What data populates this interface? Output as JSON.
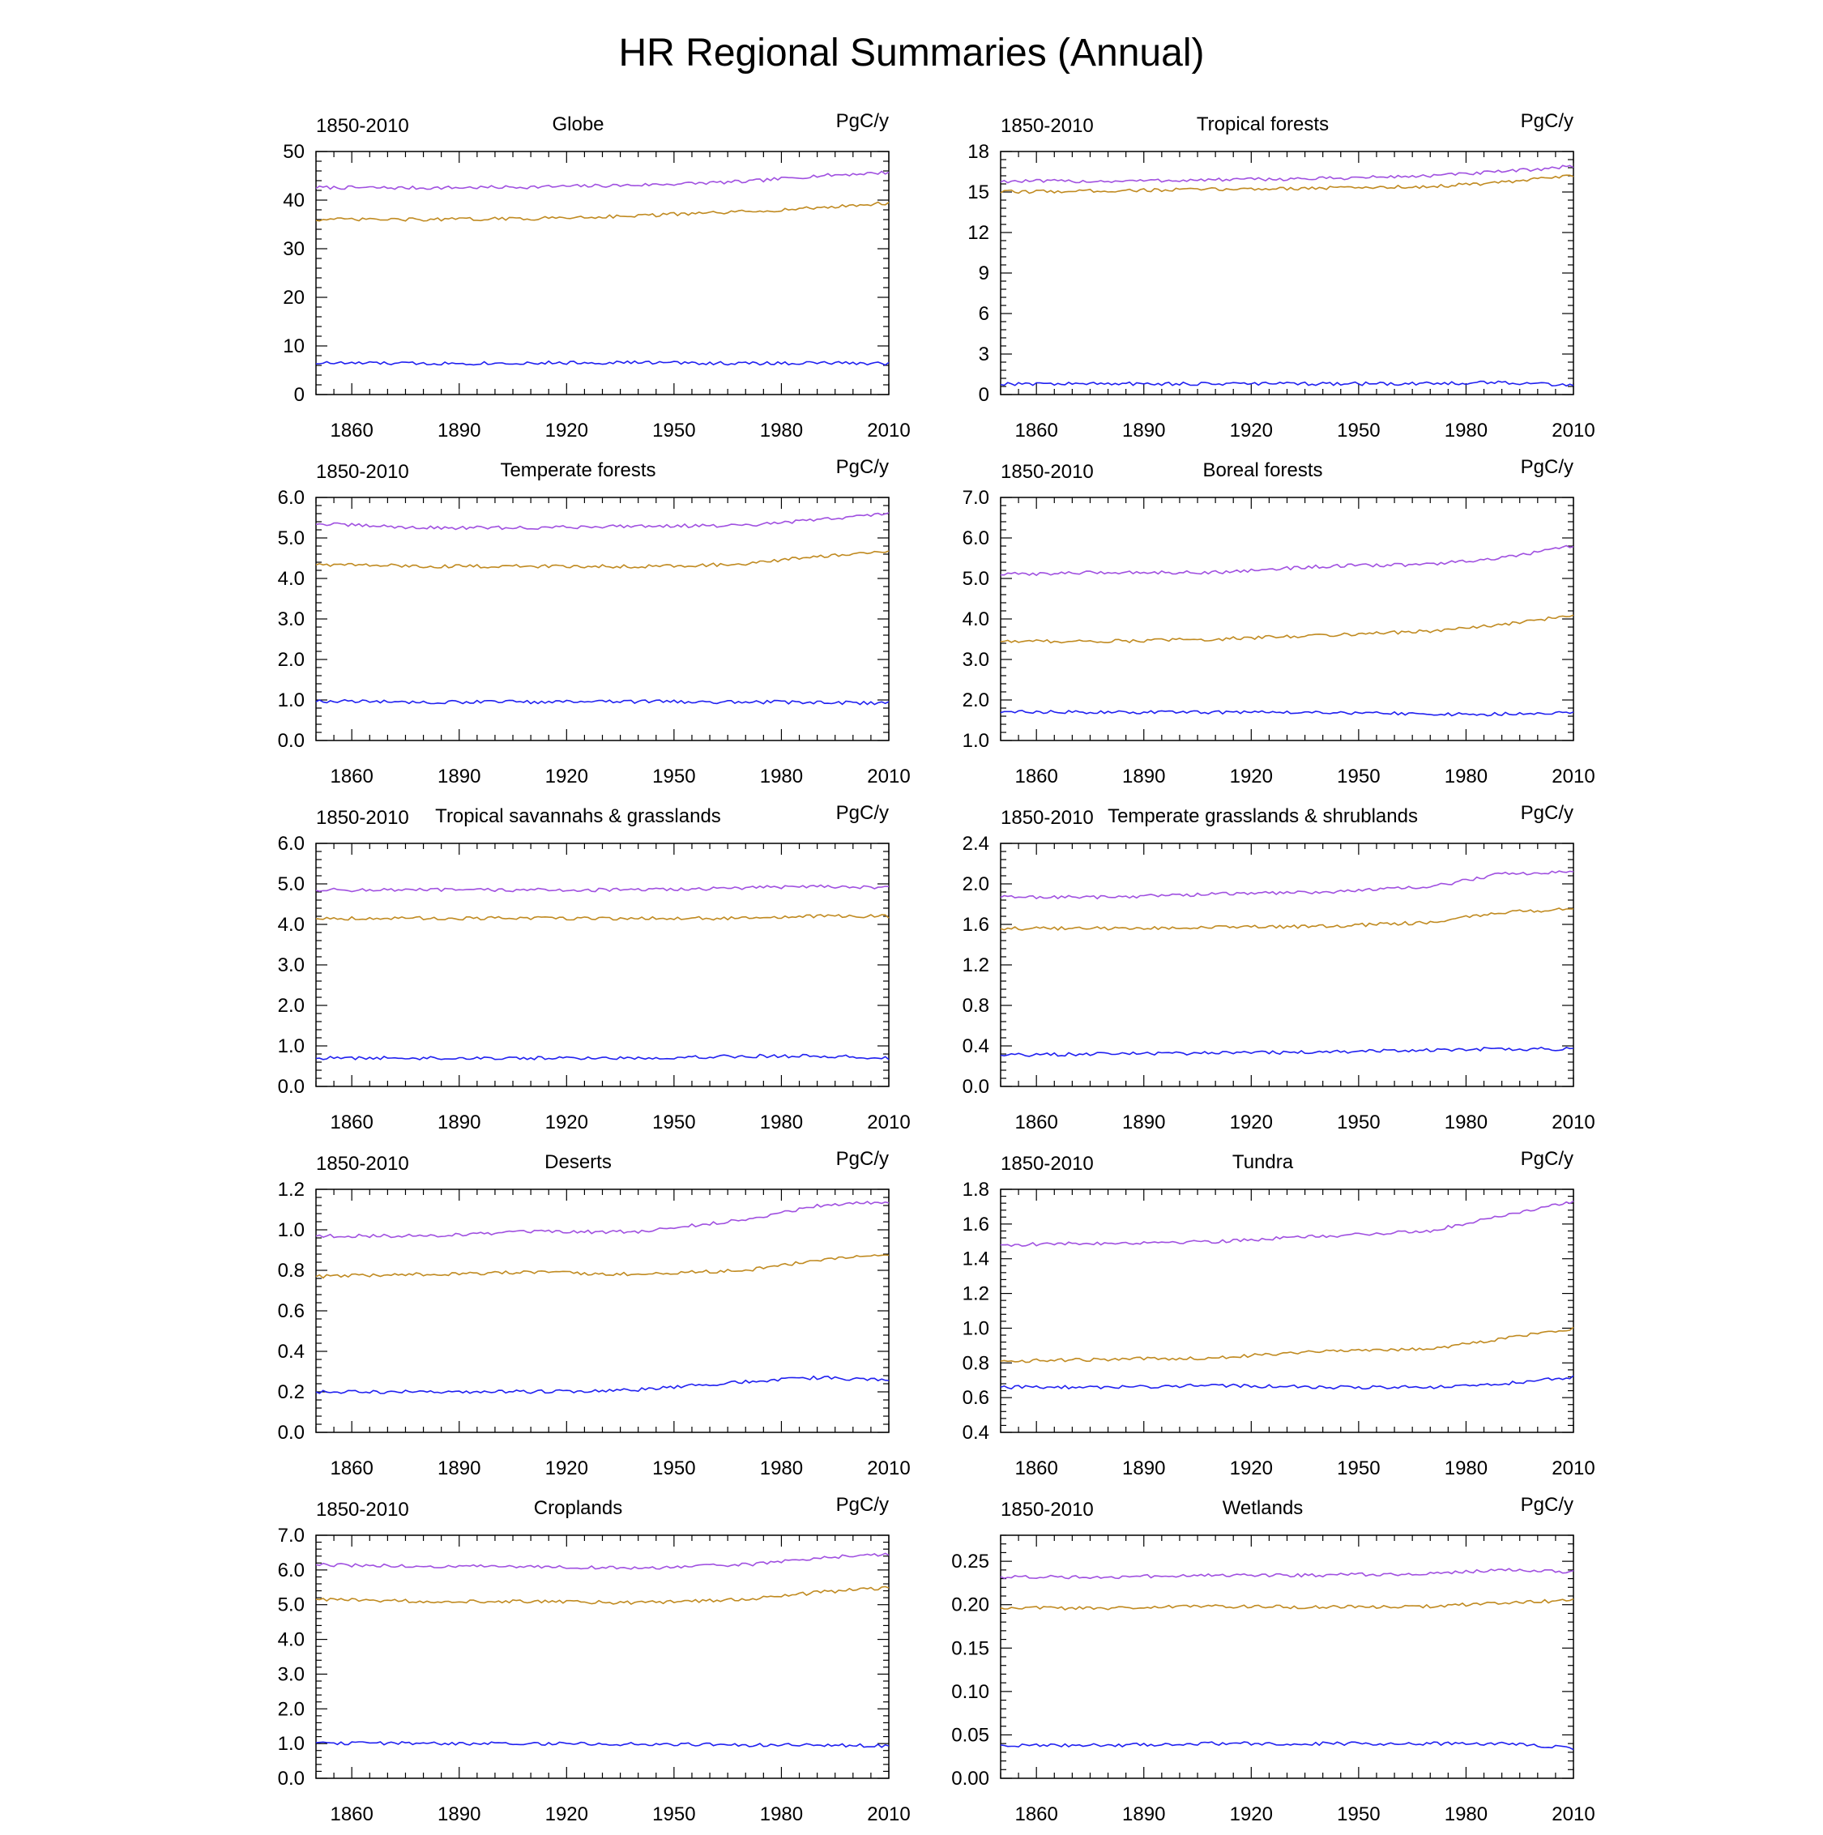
{
  "title": "HR Regional Summaries (Annual)",
  "colors": {
    "upper": "#a050e0",
    "middle": "#c08a20",
    "lower": "#2020f0"
  },
  "chart_data": [
    {
      "type": "line",
      "title": "Globe",
      "period": "1850-2010",
      "units": "PgC/y",
      "xlim": [
        1850,
        2010
      ],
      "xticks": [
        1860,
        1890,
        1920,
        1950,
        1980,
        2010
      ],
      "ylim": [
        0,
        50
      ],
      "yticks": [
        "0",
        "10",
        "20",
        "30",
        "40",
        "50"
      ],
      "series": [
        {
          "x": [
            1850,
            1880,
            1910,
            1940,
            1970,
            1990,
            2010
          ],
          "values": [
            42.6,
            42.5,
            42.7,
            43.1,
            43.8,
            45.0,
            45.7
          ]
        },
        {
          "x": [
            1850,
            1880,
            1910,
            1940,
            1970,
            1990,
            2010
          ],
          "values": [
            36.0,
            36.0,
            36.2,
            36.8,
            37.6,
            38.4,
            39.4
          ]
        },
        {
          "x": [
            1850,
            1880,
            1910,
            1940,
            1970,
            1990,
            2010
          ],
          "values": [
            6.5,
            6.4,
            6.5,
            6.6,
            6.4,
            6.5,
            6.4
          ]
        }
      ]
    },
    {
      "type": "line",
      "title": "Tropical forests",
      "period": "1850-2010",
      "units": "PgC/y",
      "xlim": [
        1850,
        2010
      ],
      "xticks": [
        1860,
        1890,
        1920,
        1950,
        1980,
        2010
      ],
      "ylim": [
        0,
        18
      ],
      "yticks": [
        "0",
        "3",
        "6",
        "9",
        "12",
        "15",
        "18"
      ],
      "series": [
        {
          "x": [
            1850,
            1880,
            1910,
            1940,
            1970,
            1990,
            2010
          ],
          "values": [
            15.8,
            15.8,
            15.9,
            16.0,
            16.2,
            16.5,
            16.9
          ]
        },
        {
          "x": [
            1850,
            1880,
            1910,
            1940,
            1970,
            1990,
            2010
          ],
          "values": [
            15.0,
            15.1,
            15.2,
            15.3,
            15.4,
            15.7,
            16.2
          ]
        },
        {
          "x": [
            1850,
            1880,
            1910,
            1940,
            1970,
            1990,
            2010
          ],
          "values": [
            0.8,
            0.8,
            0.8,
            0.8,
            0.8,
            0.9,
            0.7
          ]
        }
      ]
    },
    {
      "type": "line",
      "title": "Temperate forests",
      "period": "1850-2010",
      "units": "PgC/y",
      "xlim": [
        1850,
        2010
      ],
      "xticks": [
        1860,
        1890,
        1920,
        1950,
        1980,
        2010
      ],
      "ylim": [
        0,
        6
      ],
      "yticks": [
        "0.0",
        "1.0",
        "2.0",
        "3.0",
        "4.0",
        "5.0",
        "6.0"
      ],
      "series": [
        {
          "x": [
            1850,
            1880,
            1910,
            1940,
            1970,
            1990,
            2010
          ],
          "values": [
            5.35,
            5.25,
            5.25,
            5.3,
            5.3,
            5.45,
            5.6
          ]
        },
        {
          "x": [
            1850,
            1880,
            1910,
            1940,
            1970,
            1990,
            2010
          ],
          "values": [
            4.35,
            4.3,
            4.3,
            4.3,
            4.35,
            4.55,
            4.65
          ]
        },
        {
          "x": [
            1850,
            1880,
            1910,
            1940,
            1970,
            1990,
            2010
          ],
          "values": [
            0.97,
            0.95,
            0.95,
            0.96,
            0.95,
            0.94,
            0.92
          ]
        }
      ]
    },
    {
      "type": "line",
      "title": "Boreal forests",
      "period": "1850-2010",
      "units": "PgC/y",
      "xlim": [
        1850,
        2010
      ],
      "xticks": [
        1860,
        1890,
        1920,
        1950,
        1980,
        2010
      ],
      "ylim": [
        1,
        7
      ],
      "yticks": [
        "1.0",
        "2.0",
        "3.0",
        "4.0",
        "5.0",
        "6.0",
        "7.0"
      ],
      "series": [
        {
          "x": [
            1850,
            1880,
            1910,
            1940,
            1970,
            1990,
            2010
          ],
          "values": [
            5.1,
            5.15,
            5.15,
            5.3,
            5.35,
            5.5,
            5.8
          ]
        },
        {
          "x": [
            1850,
            1880,
            1910,
            1940,
            1970,
            1990,
            2010
          ],
          "values": [
            3.45,
            3.45,
            3.5,
            3.6,
            3.7,
            3.85,
            4.1
          ]
        },
        {
          "x": [
            1850,
            1880,
            1910,
            1940,
            1970,
            1990,
            2010
          ],
          "values": [
            1.7,
            1.7,
            1.7,
            1.7,
            1.65,
            1.65,
            1.7
          ]
        }
      ]
    },
    {
      "type": "line",
      "title": "Tropical savannahs & grasslands",
      "period": "1850-2010",
      "units": "PgC/y",
      "xlim": [
        1850,
        2010
      ],
      "xticks": [
        1860,
        1890,
        1920,
        1950,
        1980,
        2010
      ],
      "ylim": [
        0,
        6
      ],
      "yticks": [
        "0.0",
        "1.0",
        "2.0",
        "3.0",
        "4.0",
        "5.0",
        "6.0"
      ],
      "series": [
        {
          "x": [
            1850,
            1880,
            1910,
            1940,
            1970,
            1990,
            2010
          ],
          "values": [
            4.85,
            4.85,
            4.85,
            4.85,
            4.9,
            4.95,
            4.9
          ]
        },
        {
          "x": [
            1850,
            1880,
            1910,
            1940,
            1970,
            1990,
            2010
          ],
          "values": [
            4.15,
            4.15,
            4.15,
            4.15,
            4.15,
            4.2,
            4.2
          ]
        },
        {
          "x": [
            1850,
            1880,
            1910,
            1940,
            1970,
            1990,
            2010
          ],
          "values": [
            0.7,
            0.7,
            0.7,
            0.7,
            0.75,
            0.75,
            0.7
          ]
        }
      ]
    },
    {
      "type": "line",
      "title": "Temperate grasslands & shrublands",
      "period": "1850-2010",
      "units": "PgC/y",
      "xlim": [
        1850,
        2010
      ],
      "xticks": [
        1860,
        1890,
        1920,
        1950,
        1980,
        2010
      ],
      "ylim": [
        0,
        2.4
      ],
      "yticks": [
        "0.0",
        "0.4",
        "0.8",
        "1.2",
        "1.6",
        "2.0",
        "2.4"
      ],
      "series": [
        {
          "x": [
            1850,
            1880,
            1910,
            1940,
            1970,
            1990,
            2010
          ],
          "values": [
            1.87,
            1.87,
            1.9,
            1.92,
            1.97,
            2.1,
            2.12
          ]
        },
        {
          "x": [
            1850,
            1880,
            1910,
            1940,
            1970,
            1990,
            2010
          ],
          "values": [
            1.56,
            1.56,
            1.57,
            1.58,
            1.62,
            1.72,
            1.75
          ]
        },
        {
          "x": [
            1850,
            1880,
            1910,
            1940,
            1970,
            1990,
            2010
          ],
          "values": [
            0.31,
            0.32,
            0.33,
            0.34,
            0.36,
            0.37,
            0.37
          ]
        }
      ]
    },
    {
      "type": "line",
      "title": "Deserts",
      "period": "1850-2010",
      "units": "PgC/y",
      "xlim": [
        1850,
        2010
      ],
      "xticks": [
        1860,
        1890,
        1920,
        1950,
        1980,
        2010
      ],
      "ylim": [
        0,
        1.2
      ],
      "yticks": [
        "0.0",
        "0.2",
        "0.4",
        "0.6",
        "0.8",
        "1.0",
        "1.2"
      ],
      "series": [
        {
          "x": [
            1850,
            1880,
            1910,
            1940,
            1970,
            1990,
            2010
          ],
          "values": [
            0.97,
            0.97,
            0.99,
            0.99,
            1.05,
            1.12,
            1.14
          ]
        },
        {
          "x": [
            1850,
            1880,
            1910,
            1940,
            1970,
            1990,
            2010
          ],
          "values": [
            0.77,
            0.78,
            0.79,
            0.78,
            0.8,
            0.85,
            0.88
          ]
        },
        {
          "x": [
            1850,
            1880,
            1910,
            1940,
            1970,
            1990,
            2010
          ],
          "values": [
            0.2,
            0.2,
            0.2,
            0.21,
            0.25,
            0.27,
            0.26
          ]
        }
      ]
    },
    {
      "type": "line",
      "title": "Tundra",
      "period": "1850-2010",
      "units": "PgC/y",
      "xlim": [
        1850,
        2010
      ],
      "xticks": [
        1860,
        1890,
        1920,
        1950,
        1980,
        2010
      ],
      "ylim": [
        0.4,
        1.8
      ],
      "yticks": [
        "0.4",
        "0.6",
        "0.8",
        "1.0",
        "1.2",
        "1.4",
        "1.6",
        "1.8"
      ],
      "series": [
        {
          "x": [
            1850,
            1880,
            1910,
            1940,
            1970,
            1990,
            2010
          ],
          "values": [
            1.48,
            1.49,
            1.5,
            1.53,
            1.56,
            1.65,
            1.73
          ]
        },
        {
          "x": [
            1850,
            1880,
            1910,
            1940,
            1970,
            1990,
            2010
          ],
          "values": [
            0.81,
            0.82,
            0.83,
            0.87,
            0.88,
            0.94,
            1.0
          ]
        },
        {
          "x": [
            1850,
            1880,
            1910,
            1940,
            1970,
            1990,
            2010
          ],
          "values": [
            0.66,
            0.66,
            0.67,
            0.66,
            0.66,
            0.68,
            0.72
          ]
        }
      ]
    },
    {
      "type": "line",
      "title": "Croplands",
      "period": "1850-2010",
      "units": "PgC/y",
      "xlim": [
        1850,
        2010
      ],
      "xticks": [
        1860,
        1890,
        1920,
        1950,
        1980,
        2010
      ],
      "ylim": [
        0,
        7
      ],
      "yticks": [
        "0.0",
        "1.0",
        "2.0",
        "3.0",
        "4.0",
        "5.0",
        "6.0",
        "7.0"
      ],
      "series": [
        {
          "x": [
            1850,
            1880,
            1910,
            1940,
            1970,
            1990,
            2010
          ],
          "values": [
            6.15,
            6.1,
            6.1,
            6.05,
            6.15,
            6.35,
            6.45
          ]
        },
        {
          "x": [
            1850,
            1880,
            1910,
            1940,
            1970,
            1990,
            2010
          ],
          "values": [
            5.15,
            5.1,
            5.1,
            5.05,
            5.15,
            5.35,
            5.5
          ]
        },
        {
          "x": [
            1850,
            1880,
            1910,
            1940,
            1970,
            1990,
            2010
          ],
          "values": [
            1.02,
            1.0,
            1.0,
            0.98,
            0.96,
            0.95,
            0.94
          ]
        }
      ]
    },
    {
      "type": "line",
      "title": "Wetlands",
      "period": "1850-2010",
      "units": "PgC/y",
      "xlim": [
        1850,
        2010
      ],
      "xticks": [
        1860,
        1890,
        1920,
        1950,
        1980,
        2010
      ],
      "ylim": [
        0,
        0.28
      ],
      "yticks": [
        "0.00",
        "0.05",
        "0.10",
        "0.15",
        "0.20",
        "0.25"
      ],
      "series": [
        {
          "x": [
            1850,
            1880,
            1910,
            1940,
            1970,
            1990,
            2010
          ],
          "values": [
            0.232,
            0.232,
            0.234,
            0.234,
            0.236,
            0.24,
            0.238
          ]
        },
        {
          "x": [
            1850,
            1880,
            1910,
            1940,
            1970,
            1990,
            2010
          ],
          "values": [
            0.196,
            0.196,
            0.198,
            0.197,
            0.198,
            0.202,
            0.205
          ]
        },
        {
          "x": [
            1850,
            1880,
            1910,
            1940,
            1970,
            1990,
            2010
          ],
          "values": [
            0.038,
            0.038,
            0.04,
            0.04,
            0.04,
            0.04,
            0.035
          ]
        }
      ]
    }
  ]
}
